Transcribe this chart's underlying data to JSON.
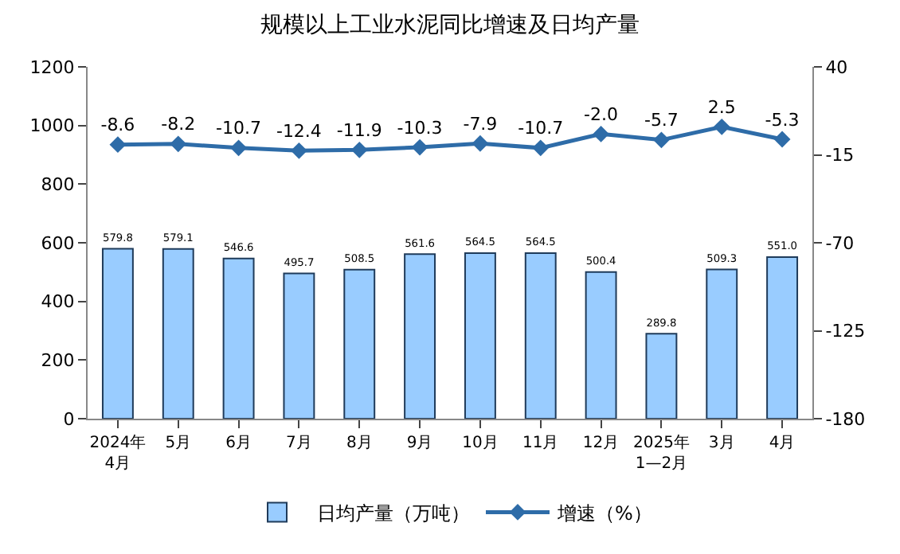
{
  "chart_data": {
    "type": "bar",
    "title": "规模以上工业水泥同比增速及日均产量",
    "categories": [
      "2024年\n4月",
      "5月",
      "6月",
      "7月",
      "8月",
      "9月",
      "10月",
      "11月",
      "12月",
      "2025年\n1—2月",
      "3月",
      "4月"
    ],
    "series": [
      {
        "name": "日均产量（万吨）",
        "color": "#99ccff",
        "values": [
          579.8,
          579.1,
          546.6,
          495.7,
          508.5,
          561.6,
          564.5,
          564.5,
          500.4,
          289.8,
          509.3,
          551.0
        ],
        "value_labels": [
          "579.8",
          "579.1",
          "546.6",
          "495.7",
          "508.5",
          "561.6",
          "564.5",
          "564.5",
          "500.4",
          "289.8",
          "509.3",
          "551.0"
        ]
      },
      {
        "name": "增速（%）",
        "type": "line",
        "axis": "y2",
        "color": "#2e6ca8",
        "marker": "diamond",
        "values": [
          -8.6,
          -8.2,
          -10.7,
          -12.4,
          -11.9,
          -10.3,
          -7.9,
          -10.7,
          -2.0,
          -5.7,
          2.5,
          -5.3
        ],
        "value_labels": [
          "-8.6",
          "-8.2",
          "-10.7",
          "-12.4",
          "-11.9",
          "-10.3",
          "-7.9",
          "-10.7",
          "-2.0",
          "-5.7",
          "2.5",
          "-5.3"
        ]
      }
    ],
    "ylim": [
      0,
      1200
    ],
    "yticks": [
      0,
      200,
      400,
      600,
      800,
      1000,
      1200
    ],
    "y2lim": [
      -180,
      40
    ],
    "y2ticks": [
      -180,
      -125,
      -70,
      -15,
      40
    ],
    "legend": "bottom"
  }
}
